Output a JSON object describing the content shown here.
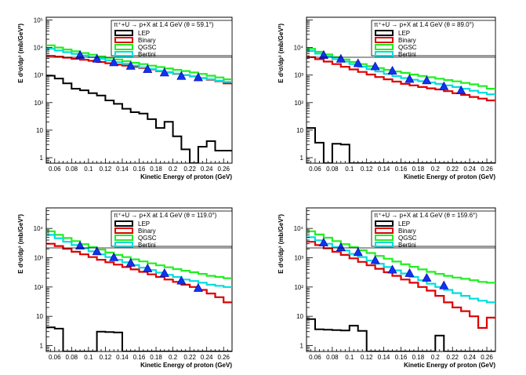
{
  "chart_data": [
    {
      "type": "line",
      "title": "π⁺+U → p+X at 1.4 GeV (θ = 59.1°)",
      "xlabel": "Kinetic Energy of proton (GeV)",
      "ylabel": "E d³σ/dp³ (mb/GeV²)",
      "ylog": true,
      "xlim": [
        0.05,
        0.27
      ],
      "ylim_exp": [
        -0.2,
        5.1
      ],
      "x_ticks": [
        "0.06",
        "0.08",
        "0.1",
        "0.12",
        "0.14",
        "0.16",
        "0.18",
        "0.2",
        "0.22",
        "0.24",
        "0.26"
      ],
      "y_ticks": [
        "1",
        "10",
        "10²",
        "10³",
        "10⁴",
        "10⁵"
      ],
      "legend": [
        "LEP",
        "Binary",
        "QGSC",
        "Bertini"
      ],
      "bin_edges": [
        0.05,
        0.06,
        0.07,
        0.08,
        0.09,
        0.1,
        0.11,
        0.12,
        0.13,
        0.14,
        0.15,
        0.16,
        0.17,
        0.18,
        0.19,
        0.2,
        0.21,
        0.22,
        0.23,
        0.24,
        0.25,
        0.26,
        0.27
      ],
      "series": [
        {
          "name": "LEP",
          "color": "#000000",
          "values": [
            950,
            750,
            500,
            320,
            280,
            220,
            180,
            120,
            90,
            60,
            45,
            40,
            25,
            12,
            20,
            6,
            2,
            0.2,
            2.5,
            4,
            1.8,
            1.8
          ]
        },
        {
          "name": "Binary",
          "color": "#dd0000",
          "values": [
            5000,
            4700,
            4300,
            3900,
            3600,
            3300,
            3000,
            2700,
            2400,
            2200,
            2000,
            1800,
            1600,
            1400,
            1250,
            1100,
            1000,
            900,
            780,
            680,
            600,
            500
          ]
        },
        {
          "name": "QGSC",
          "color": "#22ee22",
          "values": [
            12000,
            10000,
            8500,
            7300,
            6300,
            5500,
            4800,
            4200,
            3700,
            3200,
            2800,
            2500,
            2200,
            1950,
            1750,
            1550,
            1400,
            1250,
            1100,
            950,
            820,
            700
          ]
        },
        {
          "name": "Bertini",
          "color": "#00dddd",
          "values": [
            9000,
            7800,
            6800,
            5900,
            5100,
            4500,
            3900,
            3400,
            2950,
            2550,
            2200,
            1900,
            1650,
            1450,
            1280,
            1130,
            1000,
            880,
            780,
            700,
            620,
            560
          ]
        }
      ],
      "data_points": {
        "x": [
          0.09,
          0.11,
          0.13,
          0.15,
          0.17,
          0.19,
          0.21,
          0.23
        ],
        "y": [
          5200,
          3800,
          2800,
          2100,
          1600,
          1200,
          900,
          800
        ]
      }
    },
    {
      "type": "line",
      "title": "π⁺+U → p+X at 1.4 GeV (θ = 89.0°)",
      "xlabel": "Kinetic Energy of proton (GeV)",
      "ylabel": "E d³σ/dp³ (mb/GeV²)",
      "ylog": true,
      "xlim": [
        0.05,
        0.27
      ],
      "ylim_exp": [
        -0.2,
        5.1
      ],
      "x_ticks": [
        "0.06",
        "0.08",
        "0.1",
        "0.12",
        "0.14",
        "0.16",
        "0.18",
        "0.2",
        "0.22",
        "0.24",
        "0.26"
      ],
      "y_ticks": [
        "1",
        "10",
        "10²",
        "10³",
        "10⁴"
      ],
      "legend": [
        "LEP",
        "Binary",
        "QGSC",
        "Bertini"
      ],
      "bin_edges": [
        0.05,
        0.06,
        0.07,
        0.08,
        0.09,
        0.1,
        0.11,
        0.12,
        0.13,
        0.14,
        0.15,
        0.16,
        0.17,
        0.18,
        0.19,
        0.2,
        0.21,
        0.22,
        0.23,
        0.24,
        0.25,
        0.26,
        0.27
      ],
      "series": [
        {
          "name": "LEP",
          "color": "#000000",
          "values": [
            12,
            3.5,
            0.2,
            3.2,
            3,
            0.2,
            0.2,
            0.2,
            0.2,
            0.2,
            0.2,
            0.2,
            0.2,
            0.2,
            0.2,
            0.2,
            0.2,
            0.2,
            0.2,
            0.2,
            0.2,
            0.2
          ]
        },
        {
          "name": "Binary",
          "color": "#dd0000",
          "values": [
            4500,
            3800,
            3100,
            2500,
            2000,
            1600,
            1300,
            1050,
            850,
            700,
            580,
            480,
            420,
            370,
            330,
            300,
            260,
            220,
            190,
            160,
            140,
            120
          ]
        },
        {
          "name": "QGSC",
          "color": "#22ee22",
          "values": [
            9000,
            7000,
            5600,
            4500,
            3700,
            3000,
            2500,
            2100,
            1800,
            1550,
            1350,
            1200,
            1050,
            930,
            830,
            740,
            660,
            590,
            520,
            460,
            400,
            320
          ]
        },
        {
          "name": "Bertini",
          "color": "#00dddd",
          "values": [
            7500,
            6000,
            4800,
            3800,
            3100,
            2500,
            2000,
            1650,
            1350,
            1100,
            920,
            780,
            680,
            600,
            540,
            480,
            420,
            370,
            320,
            270,
            230,
            200
          ]
        }
      ],
      "data_points": {
        "x": [
          0.07,
          0.09,
          0.11,
          0.13,
          0.15,
          0.17,
          0.19,
          0.21,
          0.23
        ],
        "y": [
          5200,
          3800,
          2600,
          2000,
          1400,
          700,
          620,
          380,
          270
        ]
      }
    },
    {
      "type": "line",
      "title": "π⁺+U → p+X at 1.4 GeV (θ = 119.0°)",
      "xlabel": "Kinetic Energy of proton (GeV)",
      "ylabel": "E d³σ/dp³ (mb/GeV²)",
      "ylog": true,
      "xlim": [
        0.05,
        0.27
      ],
      "ylim_exp": [
        -0.2,
        4.7
      ],
      "x_ticks": [
        "0.06",
        "0.08",
        "0.1",
        "0.12",
        "0.14",
        "0.16",
        "0.18",
        "0.2",
        "0.22",
        "0.24",
        "0.26"
      ],
      "y_ticks": [
        "1",
        "10",
        "10²",
        "10³",
        "10⁴"
      ],
      "legend": [
        "LEP",
        "Binary",
        "QGSC",
        "Bertini"
      ],
      "bin_edges": [
        0.05,
        0.06,
        0.07,
        0.08,
        0.09,
        0.1,
        0.11,
        0.12,
        0.13,
        0.14,
        0.15,
        0.16,
        0.17,
        0.18,
        0.19,
        0.2,
        0.21,
        0.22,
        0.23,
        0.24,
        0.25,
        0.26,
        0.27
      ],
      "series": [
        {
          "name": "LEP",
          "color": "#000000",
          "values": [
            4.2,
            3.8,
            0.2,
            0.2,
            0.2,
            0.2,
            3,
            2.9,
            2.8,
            0.2,
            0.2,
            0.2,
            0.2,
            0.2,
            0.2,
            0.2,
            0.2,
            0.2,
            0.2,
            0.2,
            0.2,
            0.2
          ]
        },
        {
          "name": "Binary",
          "color": "#dd0000",
          "values": [
            3000,
            2500,
            2000,
            1600,
            1300,
            1050,
            850,
            700,
            580,
            480,
            400,
            330,
            270,
            220,
            180,
            150,
            120,
            100,
            80,
            60,
            45,
            30
          ]
        },
        {
          "name": "QGSC",
          "color": "#22ee22",
          "values": [
            8000,
            6000,
            4700,
            3700,
            2900,
            2300,
            1900,
            1500,
            1250,
            1050,
            880,
            750,
            640,
            550,
            470,
            410,
            360,
            320,
            280,
            240,
            220,
            200
          ]
        },
        {
          "name": "Bertini",
          "color": "#00dddd",
          "values": [
            6000,
            4600,
            3500,
            2700,
            2100,
            1650,
            1300,
            1050,
            850,
            700,
            560,
            460,
            380,
            310,
            260,
            220,
            180,
            160,
            140,
            120,
            110,
            100
          ]
        }
      ],
      "data_points": {
        "x": [
          0.09,
          0.11,
          0.13,
          0.15,
          0.17,
          0.19,
          0.21,
          0.23
        ],
        "y": [
          2500,
          1600,
          1000,
          650,
          420,
          290,
          160,
          90
        ]
      }
    },
    {
      "type": "line",
      "title": "π⁺+U → p+X at 1.4 GeV (θ = 159.6°)",
      "xlabel": "Kinetic Energy of proton (GeV)",
      "ylabel": "E d³σ/dp³ (mb/GeV²)",
      "ylog": true,
      "xlim": [
        0.05,
        0.27
      ],
      "ylim_exp": [
        -0.2,
        4.7
      ],
      "x_ticks": [
        "0.06",
        "0.08",
        "0.1",
        "0.12",
        "0.14",
        "0.16",
        "0.18",
        "0.2",
        "0.22",
        "0.24",
        "0.26"
      ],
      "y_ticks": [
        "1",
        "10",
        "10²",
        "10³",
        "10⁴"
      ],
      "legend": [
        "LEP",
        "Binary",
        "QGSC",
        "Bertini"
      ],
      "bin_edges": [
        0.05,
        0.06,
        0.07,
        0.08,
        0.09,
        0.1,
        0.11,
        0.12,
        0.13,
        0.14,
        0.15,
        0.16,
        0.17,
        0.18,
        0.19,
        0.2,
        0.21,
        0.22,
        0.23,
        0.24,
        0.25,
        0.26,
        0.27
      ],
      "series": [
        {
          "name": "LEP",
          "color": "#000000",
          "values": [
            8,
            3.6,
            3.5,
            3.4,
            3.3,
            4.8,
            3.2,
            0.2,
            0.2,
            0.2,
            0.2,
            0.2,
            0.2,
            0.2,
            0.2,
            2.2,
            0.2,
            0.2,
            0.2,
            0.2,
            0.2,
            0.2
          ]
        },
        {
          "name": "Binary",
          "color": "#dd0000",
          "values": [
            3500,
            2700,
            2100,
            1600,
            1250,
            950,
            720,
            550,
            420,
            320,
            240,
            180,
            140,
            100,
            75,
            50,
            30,
            20,
            15,
            10,
            4,
            9
          ]
        },
        {
          "name": "QGSC",
          "color": "#22ee22",
          "values": [
            8000,
            6200,
            4800,
            3700,
            2900,
            2300,
            1800,
            1450,
            1150,
            920,
            740,
            600,
            490,
            400,
            330,
            280,
            240,
            210,
            190,
            170,
            150,
            140
          ]
        },
        {
          "name": "Bertini",
          "color": "#00dddd",
          "values": [
            5000,
            3900,
            3000,
            2300,
            1750,
            1350,
            1050,
            800,
            620,
            480,
            370,
            290,
            220,
            170,
            130,
            100,
            80,
            62,
            50,
            40,
            34,
            30
          ]
        }
      ],
      "data_points": {
        "x": [
          0.07,
          0.09,
          0.11,
          0.13,
          0.15,
          0.17,
          0.19,
          0.21
        ],
        "y": [
          3200,
          2200,
          1500,
          800,
          380,
          290,
          200,
          110
        ]
      }
    }
  ]
}
